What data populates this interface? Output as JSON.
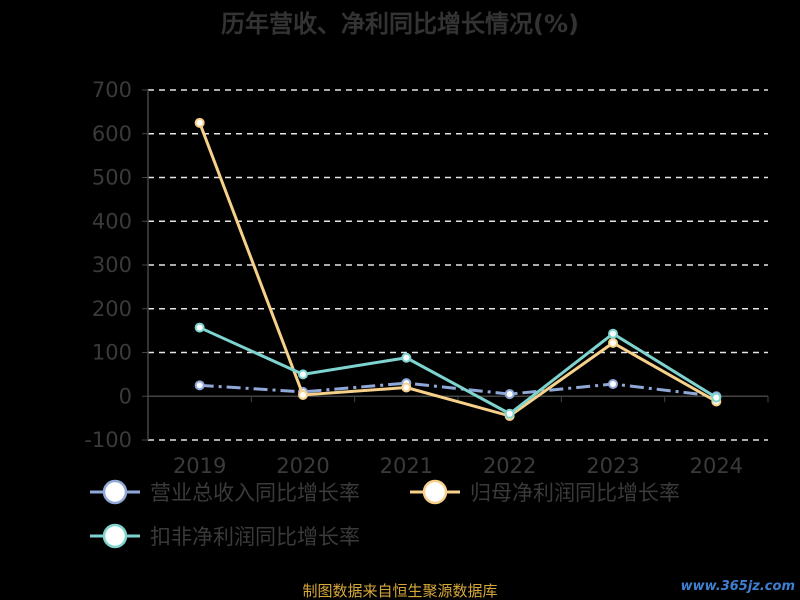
{
  "chart_data": {
    "type": "line",
    "title": "历年营收、净利同比增长情况(%)",
    "categories": [
      "2019",
      "2020",
      "2021",
      "2022",
      "2023",
      "2024"
    ],
    "ylim": [
      -100,
      700
    ],
    "yticks": [
      700,
      600,
      500,
      400,
      300,
      200,
      100,
      0,
      -100
    ],
    "grid": true,
    "legend_position": "bottom",
    "series": [
      {
        "name": "营业总收入同比增长率",
        "values": [
          25,
          10,
          30,
          5,
          28,
          0
        ],
        "color": "#8fa8d8",
        "style": "dashdot"
      },
      {
        "name": "归母净利润同比增长率",
        "values": [
          625,
          3,
          20,
          -45,
          122,
          -12
        ],
        "color": "#f7d08a",
        "style": "solid"
      },
      {
        "name": "扣非净利润同比增长率",
        "values": [
          157,
          50,
          88,
          -40,
          143,
          -3
        ],
        "color": "#7fd3cf",
        "style": "solid"
      }
    ]
  },
  "footer": {
    "source": "制图数据来自恒生聚源数据库",
    "watermark": "www.365jz.com"
  }
}
